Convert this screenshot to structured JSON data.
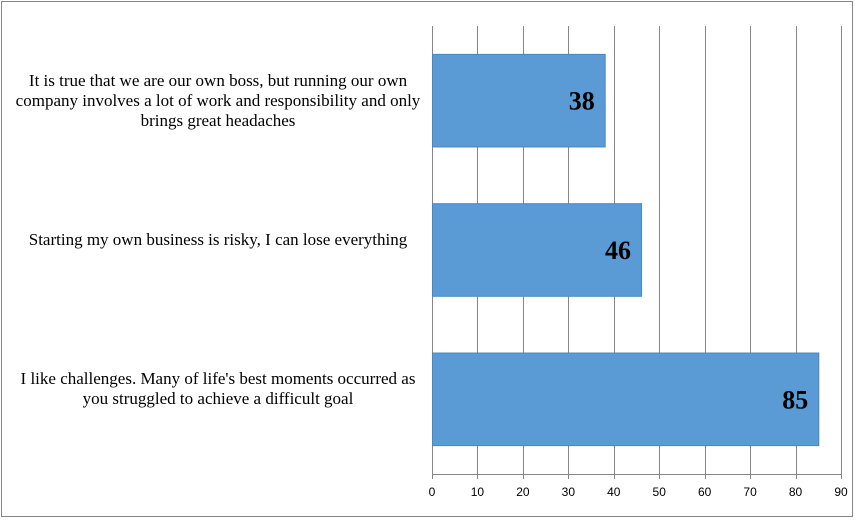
{
  "chart_data": {
    "type": "bar",
    "orientation": "horizontal",
    "categories": [
      "It is true that we are our own boss, but running our own company involves a lot of work and responsibility and only brings great headaches",
      "Starting my own business is risky, I can lose everything",
      "I like challenges. Many of life's best moments occurred as you struggled to achieve a difficult goal"
    ],
    "values": [
      38,
      46,
      85
    ],
    "xlim": [
      0,
      90
    ],
    "x_ticks": [
      0,
      10,
      20,
      30,
      40,
      50,
      60,
      70,
      80,
      90
    ],
    "data_labels": [
      "38",
      "46",
      "85"
    ],
    "grid": "vertical",
    "legend": "none",
    "bar_color": "#5B9BD5",
    "bar_border_color": "#4A86BE",
    "title": "",
    "xlabel": "",
    "ylabel": ""
  }
}
